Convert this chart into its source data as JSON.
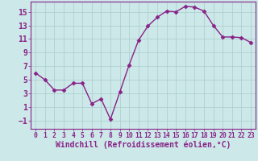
{
  "x": [
    0,
    1,
    2,
    3,
    4,
    5,
    6,
    7,
    8,
    9,
    10,
    11,
    12,
    13,
    14,
    15,
    16,
    17,
    18,
    19,
    20,
    21,
    22,
    23
  ],
  "y": [
    6,
    5,
    3.5,
    3.5,
    4.5,
    4.5,
    1.5,
    2.2,
    -0.8,
    3.2,
    7.2,
    10.8,
    12.9,
    14.2,
    15.1,
    15.0,
    15.8,
    15.7,
    15.1,
    13.0,
    11.3,
    11.3,
    11.2,
    10.5
  ],
  "line_color": "#882288",
  "marker": "D",
  "marker_size": 2.5,
  "bg_color": "#cce8e8",
  "grid_color": "#aacccc",
  "xlabel": "Windchill (Refroidissement éolien,°C)",
  "xlim": [
    -0.5,
    23.5
  ],
  "ylim": [
    -2.2,
    16.5
  ],
  "yticks": [
    -1,
    1,
    3,
    5,
    7,
    9,
    11,
    13,
    15
  ],
  "xticks": [
    0,
    1,
    2,
    3,
    4,
    5,
    6,
    7,
    8,
    9,
    10,
    11,
    12,
    13,
    14,
    15,
    16,
    17,
    18,
    19,
    20,
    21,
    22,
    23
  ],
  "xlabel_fontsize": 7,
  "ytick_fontsize": 7,
  "xtick_fontsize": 5.8,
  "line_width": 1.0,
  "spine_color": "#882288"
}
